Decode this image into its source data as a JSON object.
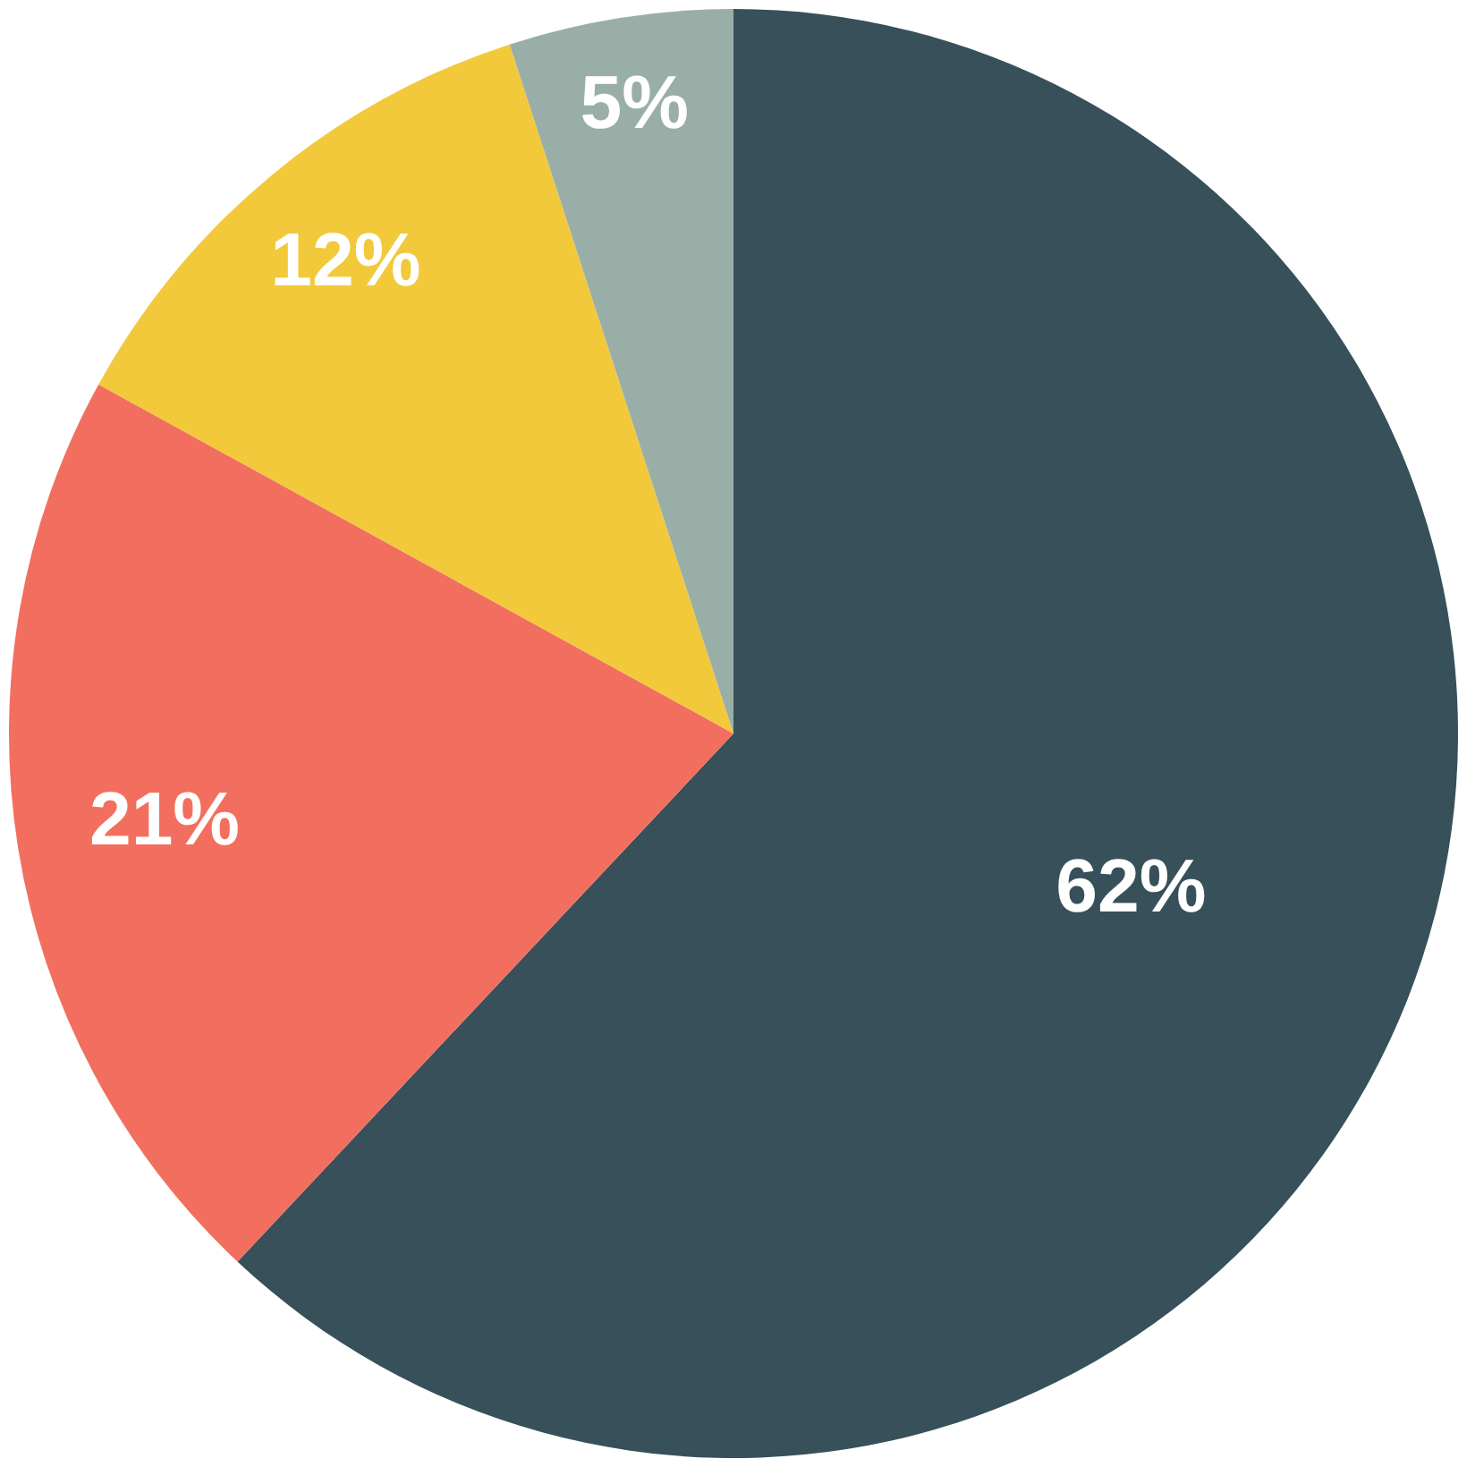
{
  "chart_data": {
    "type": "pie",
    "categories": [
      null,
      null,
      null,
      null
    ],
    "values": [
      62,
      21,
      12,
      5
    ],
    "colors": [
      "#37505a",
      "#f26f5f",
      "#f2c93b",
      "#9aaea8"
    ],
    "value_labels": [
      "62%",
      "21%",
      "12%",
      "5%"
    ]
  }
}
